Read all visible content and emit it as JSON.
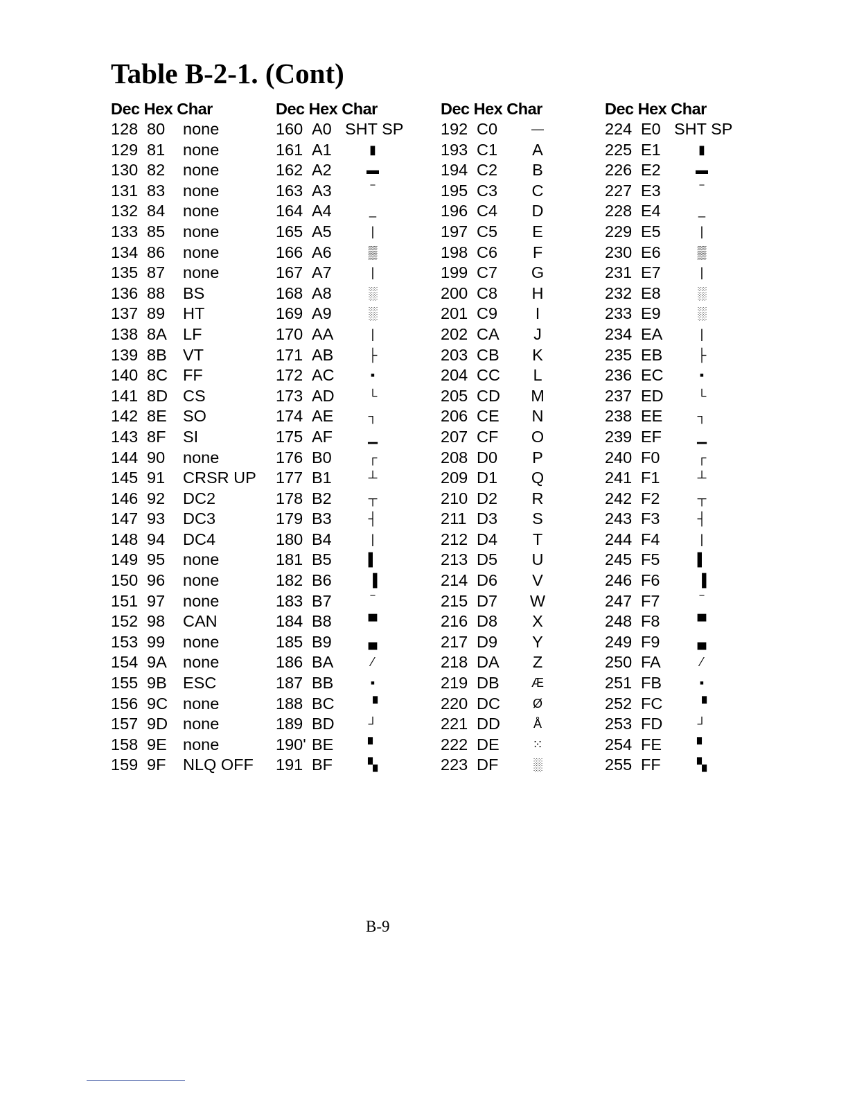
{
  "title": "Table B-2-1. (Cont)",
  "header": "Dec Hex Char",
  "footer": "B-9",
  "columns": [
    {
      "graphic": false,
      "rows": [
        [
          "128",
          "80",
          "none"
        ],
        [
          "129",
          "81",
          "none"
        ],
        [
          "130",
          "82",
          "none"
        ],
        [
          "131",
          "83",
          "none"
        ],
        [
          "132",
          "84",
          "none"
        ],
        [
          "133",
          "85",
          "none"
        ],
        [
          "134",
          "86",
          "none"
        ],
        [
          "135",
          "87",
          "none"
        ],
        [
          "136",
          "88",
          "BS"
        ],
        [
          "137",
          "89",
          "HT"
        ],
        [
          "138",
          "8A",
          "LF"
        ],
        [
          "139",
          "8B",
          "VT"
        ],
        [
          "140",
          "8C",
          "FF"
        ],
        [
          "141",
          "8D",
          "CS"
        ],
        [
          "142",
          "8E",
          "SO"
        ],
        [
          "143",
          "8F",
          "SI"
        ],
        [
          "144",
          "90",
          "none"
        ],
        [
          "145",
          "91",
          "CRSR UP"
        ],
        [
          "146",
          "92",
          "DC2"
        ],
        [
          "147",
          "93",
          "DC3"
        ],
        [
          "148",
          "94",
          "DC4"
        ],
        [
          "149",
          "95",
          "none"
        ],
        [
          "150",
          "96",
          "none"
        ],
        [
          "151",
          "97",
          "none"
        ],
        [
          "152",
          "98",
          "CAN"
        ],
        [
          "153",
          "99",
          "none"
        ],
        [
          "154",
          "9A",
          "none"
        ],
        [
          "155",
          "9B",
          "ESC"
        ],
        [
          "156",
          "9C",
          "none"
        ],
        [
          "157",
          "9D",
          "none"
        ],
        [
          "158",
          "9E",
          "none"
        ],
        [
          "159",
          "9F",
          "NLQ OFF"
        ]
      ]
    },
    {
      "graphic": true,
      "rows": [
        [
          "160",
          "A0",
          "SHT SP"
        ],
        [
          "161",
          "A1",
          "▮"
        ],
        [
          "162",
          "A2",
          "▬"
        ],
        [
          "163",
          "A3",
          "‾"
        ],
        [
          "164",
          "A4",
          "_"
        ],
        [
          "165",
          "A5",
          "|"
        ],
        [
          "166",
          "A6",
          "▒"
        ],
        [
          "167",
          "A7",
          "|"
        ],
        [
          "168",
          "A8",
          "░"
        ],
        [
          "169",
          "A9",
          "░"
        ],
        [
          "170",
          "AA",
          "|"
        ],
        [
          "171",
          "AB",
          "├"
        ],
        [
          "172",
          "AC",
          "▪"
        ],
        [
          "173",
          "AD",
          "└"
        ],
        [
          "174",
          "AE",
          "┐"
        ],
        [
          "175",
          "AF",
          "▁"
        ],
        [
          "176",
          "B0",
          "┌"
        ],
        [
          "177",
          "B1",
          "┴"
        ],
        [
          "178",
          "B2",
          "┬"
        ],
        [
          "179",
          "B3",
          "┤"
        ],
        [
          "180",
          "B4",
          "|"
        ],
        [
          "181",
          "B5",
          "▌"
        ],
        [
          "182",
          "B6",
          "▐"
        ],
        [
          "183",
          "B7",
          "‾"
        ],
        [
          "184",
          "B8",
          "▀"
        ],
        [
          "185",
          "B9",
          "▄"
        ],
        [
          "186",
          "BA",
          "⁄"
        ],
        [
          "187",
          "BB",
          "▪"
        ],
        [
          "188",
          "BC",
          "▝"
        ],
        [
          "189",
          "BD",
          "┘"
        ],
        [
          "190'",
          "BE",
          "▘"
        ],
        [
          "191",
          "BF",
          "▚"
        ]
      ]
    },
    {
      "graphic": true,
      "rows": [
        [
          "192",
          "C0",
          "—"
        ],
        [
          "193",
          "C1",
          "A"
        ],
        [
          "194",
          "C2",
          "B"
        ],
        [
          "195",
          "C3",
          "C"
        ],
        [
          "196",
          "C4",
          "D"
        ],
        [
          "197",
          "C5",
          "E"
        ],
        [
          "198",
          "C6",
          "F"
        ],
        [
          "199",
          "C7",
          "G"
        ],
        [
          "200",
          "C8",
          "H"
        ],
        [
          "201",
          "C9",
          "I"
        ],
        [
          "202",
          "CA",
          "J"
        ],
        [
          "203",
          "CB",
          "K"
        ],
        [
          "204",
          "CC",
          "L"
        ],
        [
          "205",
          "CD",
          "M"
        ],
        [
          "206",
          "CE",
          "N"
        ],
        [
          "207",
          "CF",
          "O"
        ],
        [
          "208",
          "D0",
          "P"
        ],
        [
          "209",
          "D1",
          "Q"
        ],
        [
          "210",
          "D2",
          "R"
        ],
        [
          "211",
          "D3",
          "S"
        ],
        [
          "212",
          "D4",
          "T"
        ],
        [
          "213",
          "D5",
          "U"
        ],
        [
          "214",
          "D6",
          "V"
        ],
        [
          "215",
          "D7",
          "W"
        ],
        [
          "216",
          "D8",
          "X"
        ],
        [
          "217",
          "D9",
          "Y"
        ],
        [
          "218",
          "DA",
          "Z"
        ],
        [
          "219",
          "DB",
          "Æ"
        ],
        [
          "220",
          "DC",
          "Ø"
        ],
        [
          "221",
          "DD",
          "Å"
        ],
        [
          "222",
          "DE",
          "⁙"
        ],
        [
          "223",
          "DF",
          "░"
        ]
      ]
    },
    {
      "graphic": true,
      "rows": [
        [
          "224",
          "E0",
          "SHT SP"
        ],
        [
          "225",
          "E1",
          "▮"
        ],
        [
          "226",
          "E2",
          "▬"
        ],
        [
          "227",
          "E3",
          "‾"
        ],
        [
          "228",
          "E4",
          "_"
        ],
        [
          "229",
          "E5",
          "|"
        ],
        [
          "230",
          "E6",
          "▒"
        ],
        [
          "231",
          "E7",
          "|"
        ],
        [
          "232",
          "E8",
          "░"
        ],
        [
          "233",
          "E9",
          "░"
        ],
        [
          "234",
          "EA",
          "|"
        ],
        [
          "235",
          "EB",
          "├"
        ],
        [
          "236",
          "EC",
          "▪"
        ],
        [
          "237",
          "ED",
          "└"
        ],
        [
          "238",
          "EE",
          "┐"
        ],
        [
          "239",
          "EF",
          "▁"
        ],
        [
          "240",
          "F0",
          "┌"
        ],
        [
          "241",
          "F1",
          "┴"
        ],
        [
          "242",
          "F2",
          "┬"
        ],
        [
          "243",
          "F3",
          "┤"
        ],
        [
          "244",
          "F4",
          "|"
        ],
        [
          "245",
          "F5",
          "▌"
        ],
        [
          "246",
          "F6",
          "▐"
        ],
        [
          "247",
          "F7",
          "‾"
        ],
        [
          "248",
          "F8",
          "▀"
        ],
        [
          "249",
          "F9",
          "▄"
        ],
        [
          "250",
          "FA",
          "⁄"
        ],
        [
          "251",
          "FB",
          "▪"
        ],
        [
          "252",
          "FC",
          "▝"
        ],
        [
          "253",
          "FD",
          "┘"
        ],
        [
          "254",
          "FE",
          "▘"
        ],
        [
          "255",
          "FF",
          "▚"
        ]
      ]
    }
  ]
}
